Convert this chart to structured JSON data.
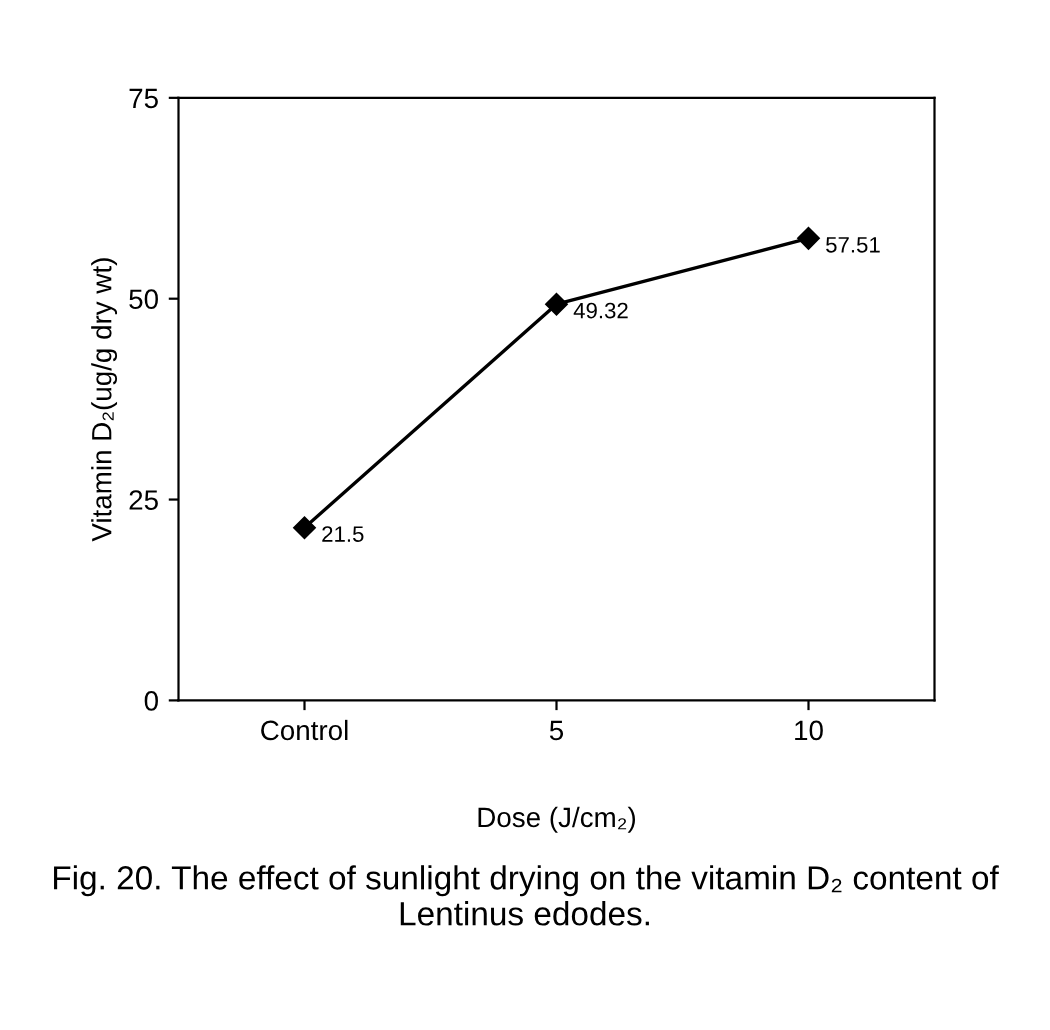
{
  "chart_data": {
    "type": "line",
    "categories": [
      "Control",
      "5",
      "10"
    ],
    "values": [
      21.5,
      49.32,
      57.51
    ],
    "color": "#000000",
    "marker": "diamond",
    "line_style": "solid",
    "data_labels": true,
    "ylim": [
      0,
      75
    ],
    "yticks": [
      0,
      25,
      50,
      75
    ],
    "grid": false,
    "legend": false,
    "xlabel": "Dose (J/cm₂)",
    "ylabel": "Vitamin D₂(ug/g dry wt)",
    "annotations": [
      "Fig. 20. The effect of sunlight drying on the vitamin D₂ content of Lentinus edodes."
    ]
  }
}
